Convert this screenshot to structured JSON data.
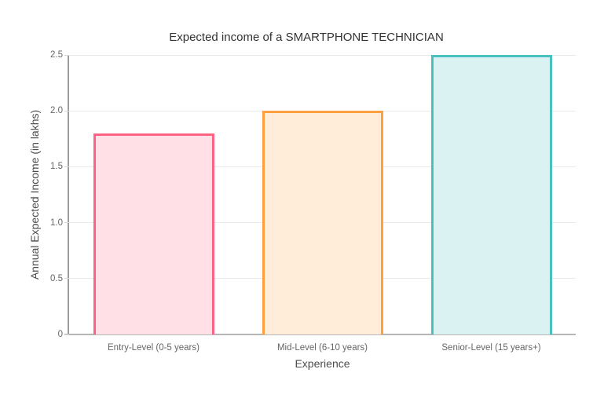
{
  "chart_data": {
    "type": "bar",
    "title": "Expected income of a SMARTPHONE TECHNICIAN",
    "categories": [
      "Entry-Level (0-5 years)",
      "Mid-Level (6-10 years)",
      "Senior-Level (15 years+)"
    ],
    "values": [
      1.8,
      2.0,
      2.5
    ],
    "xlabel": "Experience",
    "ylabel": "Annual Expected Income (in lakhs)",
    "ylim": [
      0,
      2.5
    ],
    "ytick_labels": [
      "0",
      "0.5",
      "1.0",
      "1.5",
      "2.0",
      "2.5"
    ],
    "ytick_values": [
      0,
      0.5,
      1.0,
      1.5,
      2.0,
      2.5
    ],
    "grid": true,
    "legend": false,
    "bar_colors": [
      {
        "border": "#FF6384",
        "fill": "#FFE0E6"
      },
      {
        "border": "#FF9F40",
        "fill": "#FFECD9"
      },
      {
        "border": "#4BC0C0",
        "fill": "#DBF2F2"
      }
    ]
  },
  "colors": {
    "background": "#FFFFFF",
    "gridline": "#EAEAEA",
    "y_axis_line": "#9C9C9C",
    "x_axis_line": "#B6B6B6",
    "tick_mark": "#D8D8D8",
    "title_text": "#333333",
    "tick_text": "#666666",
    "axis_title_text": "#4D4D4D"
  }
}
